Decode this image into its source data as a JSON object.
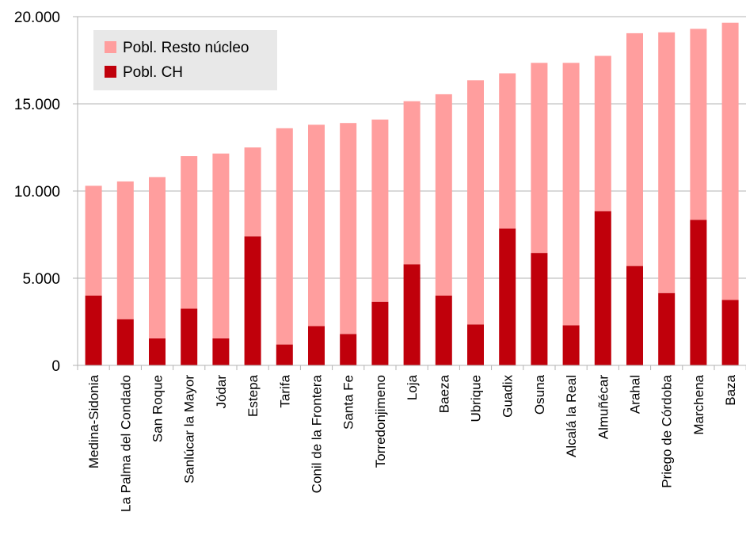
{
  "chart_data": {
    "type": "bar",
    "stacked": true,
    "categories": [
      "Medina-Sidonia",
      "La Palma del Condado",
      "San Roque",
      "Sanlúcar la Mayor",
      "Jódar",
      "Estepa",
      "Tarifa",
      "Conil de la Frontera",
      "Santa Fe",
      "Torredonjimeno",
      "Loja",
      "Baeza",
      "Ubrique",
      "Guadix",
      "Osuna",
      "Alcalá la Real",
      "Almuñécar",
      "Arahal",
      "Priego de Córdoba",
      "Marchena",
      "Baza"
    ],
    "series": [
      {
        "name": "Pobl. CH",
        "color": "#c0000b",
        "values": [
          4000,
          2650,
          1550,
          3250,
          1550,
          7400,
          1200,
          2250,
          1800,
          3650,
          5800,
          4000,
          2350,
          7850,
          6450,
          2300,
          8850,
          5700,
          4150,
          8350,
          3750
        ]
      },
      {
        "name": "Pobl. Resto núcleo",
        "color": "#ff9e9e",
        "values": [
          6300,
          7900,
          9250,
          8750,
          10600,
          5100,
          12400,
          11550,
          12100,
          10450,
          9350,
          11550,
          14000,
          8900,
          10900,
          15050,
          8900,
          13350,
          14950,
          10950,
          15900
        ]
      }
    ],
    "yticks": [
      "0",
      "5.000",
      "10.000",
      "15.000",
      "20.000"
    ],
    "ylim": [
      0,
      20000
    ],
    "grid": true,
    "legend": {
      "placement": "top-left",
      "entries": [
        "Pobl. Resto núcleo",
        "Pobl. CH"
      ]
    },
    "title": "",
    "xlabel": "",
    "ylabel": ""
  }
}
